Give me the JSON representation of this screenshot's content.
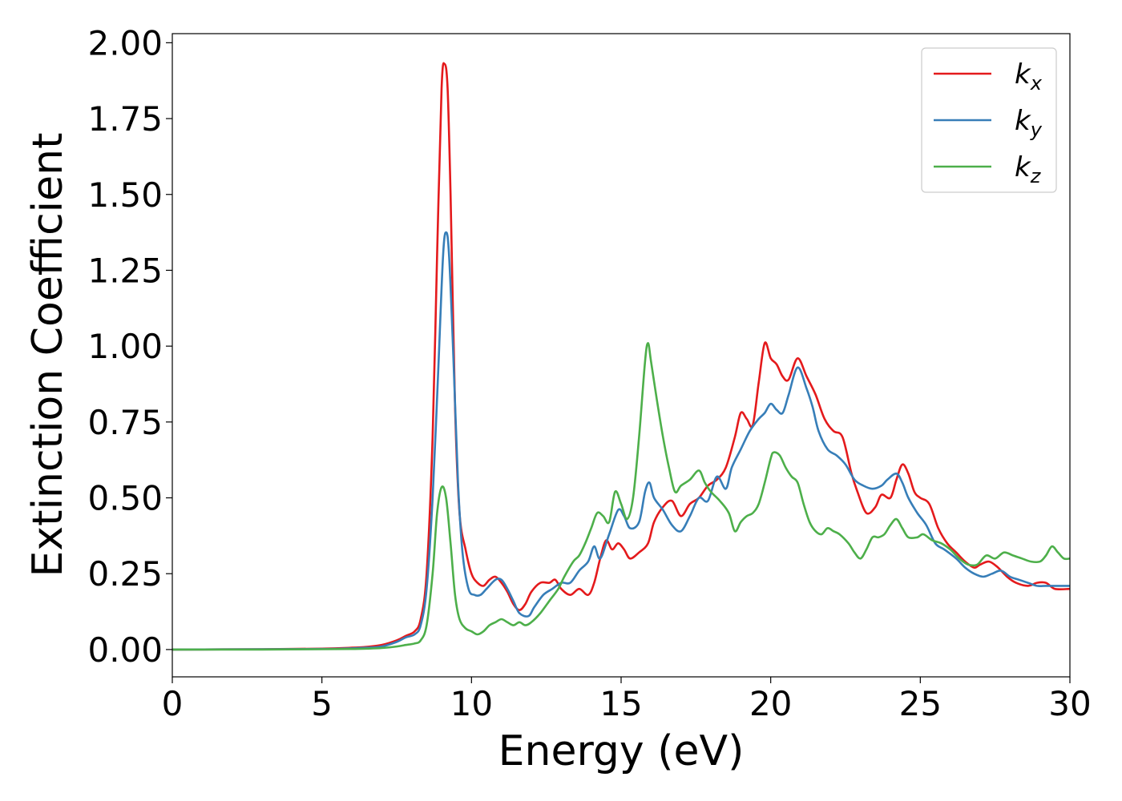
{
  "chart_data": {
    "type": "line",
    "title": "",
    "xlabel": "Energy (eV)",
    "ylabel": "Extinction Coefficient",
    "xlim": [
      0,
      30
    ],
    "ylim": [
      -0.09,
      2.03
    ],
    "xticks": [
      0,
      5,
      10,
      15,
      20,
      25,
      30
    ],
    "xtick_labels": [
      "0",
      "5",
      "10",
      "15",
      "20",
      "25",
      "30"
    ],
    "yticks": [
      0.0,
      0.25,
      0.5,
      0.75,
      1.0,
      1.25,
      1.5,
      1.75,
      2.0
    ],
    "ytick_labels": [
      "0.00",
      "0.25",
      "0.50",
      "0.75",
      "1.00",
      "1.25",
      "1.50",
      "1.75",
      "2.00"
    ],
    "grid": false,
    "legend_position": "top-right",
    "series": [
      {
        "name": "k",
        "subscript": "x",
        "color": "#e41a1c",
        "points": [
          [
            0,
            0.0
          ],
          [
            3,
            0.001
          ],
          [
            5,
            0.003
          ],
          [
            6,
            0.006
          ],
          [
            6.5,
            0.009
          ],
          [
            7,
            0.015
          ],
          [
            7.5,
            0.03
          ],
          [
            7.8,
            0.045
          ],
          [
            8.1,
            0.06
          ],
          [
            8.3,
            0.1
          ],
          [
            8.5,
            0.25
          ],
          [
            8.7,
            0.7
          ],
          [
            8.85,
            1.3
          ],
          [
            9.0,
            1.85
          ],
          [
            9.1,
            1.93
          ],
          [
            9.2,
            1.85
          ],
          [
            9.3,
            1.5
          ],
          [
            9.45,
            0.8
          ],
          [
            9.6,
            0.45
          ],
          [
            9.8,
            0.33
          ],
          [
            10.0,
            0.25
          ],
          [
            10.2,
            0.22
          ],
          [
            10.4,
            0.21
          ],
          [
            10.6,
            0.23
          ],
          [
            10.8,
            0.24
          ],
          [
            11.0,
            0.22
          ],
          [
            11.2,
            0.19
          ],
          [
            11.4,
            0.15
          ],
          [
            11.6,
            0.13
          ],
          [
            11.8,
            0.15
          ],
          [
            12.0,
            0.19
          ],
          [
            12.3,
            0.22
          ],
          [
            12.6,
            0.22
          ],
          [
            12.8,
            0.23
          ],
          [
            13.0,
            0.2
          ],
          [
            13.3,
            0.18
          ],
          [
            13.6,
            0.2
          ],
          [
            13.9,
            0.18
          ],
          [
            14.1,
            0.22
          ],
          [
            14.3,
            0.3
          ],
          [
            14.5,
            0.36
          ],
          [
            14.7,
            0.33
          ],
          [
            14.9,
            0.35
          ],
          [
            15.1,
            0.33
          ],
          [
            15.3,
            0.3
          ],
          [
            15.6,
            0.32
          ],
          [
            15.9,
            0.35
          ],
          [
            16.1,
            0.42
          ],
          [
            16.4,
            0.47
          ],
          [
            16.7,
            0.49
          ],
          [
            17.0,
            0.44
          ],
          [
            17.3,
            0.48
          ],
          [
            17.6,
            0.5
          ],
          [
            17.9,
            0.54
          ],
          [
            18.2,
            0.56
          ],
          [
            18.5,
            0.6
          ],
          [
            18.8,
            0.7
          ],
          [
            19.0,
            0.78
          ],
          [
            19.2,
            0.76
          ],
          [
            19.4,
            0.74
          ],
          [
            19.6,
            0.88
          ],
          [
            19.8,
            1.01
          ],
          [
            20.0,
            0.96
          ],
          [
            20.2,
            0.94
          ],
          [
            20.4,
            0.9
          ],
          [
            20.6,
            0.89
          ],
          [
            20.9,
            0.96
          ],
          [
            21.2,
            0.9
          ],
          [
            21.5,
            0.84
          ],
          [
            21.8,
            0.76
          ],
          [
            22.1,
            0.72
          ],
          [
            22.4,
            0.7
          ],
          [
            22.7,
            0.58
          ],
          [
            22.9,
            0.52
          ],
          [
            23.2,
            0.45
          ],
          [
            23.5,
            0.47
          ],
          [
            23.7,
            0.51
          ],
          [
            24.0,
            0.5
          ],
          [
            24.2,
            0.56
          ],
          [
            24.4,
            0.61
          ],
          [
            24.6,
            0.58
          ],
          [
            24.8,
            0.52
          ],
          [
            25.0,
            0.5
          ],
          [
            25.3,
            0.48
          ],
          [
            25.6,
            0.4
          ],
          [
            25.9,
            0.35
          ],
          [
            26.2,
            0.32
          ],
          [
            26.5,
            0.29
          ],
          [
            26.8,
            0.27
          ],
          [
            27.0,
            0.28
          ],
          [
            27.3,
            0.29
          ],
          [
            27.6,
            0.27
          ],
          [
            27.9,
            0.24
          ],
          [
            28.2,
            0.22
          ],
          [
            28.6,
            0.21
          ],
          [
            28.9,
            0.22
          ],
          [
            29.2,
            0.22
          ],
          [
            29.5,
            0.2
          ],
          [
            30.0,
            0.2
          ]
        ]
      },
      {
        "name": "k",
        "subscript": "y",
        "color": "#377eb8",
        "points": [
          [
            0,
            0.0
          ],
          [
            3,
            0.001
          ],
          [
            5,
            0.002
          ],
          [
            6,
            0.004
          ],
          [
            6.5,
            0.006
          ],
          [
            7,
            0.01
          ],
          [
            7.5,
            0.025
          ],
          [
            7.8,
            0.04
          ],
          [
            8.1,
            0.05
          ],
          [
            8.3,
            0.08
          ],
          [
            8.5,
            0.2
          ],
          [
            8.7,
            0.5
          ],
          [
            8.9,
            0.95
          ],
          [
            9.05,
            1.3
          ],
          [
            9.15,
            1.375
          ],
          [
            9.25,
            1.3
          ],
          [
            9.4,
            0.95
          ],
          [
            9.55,
            0.55
          ],
          [
            9.7,
            0.32
          ],
          [
            9.9,
            0.2
          ],
          [
            10.1,
            0.18
          ],
          [
            10.3,
            0.18
          ],
          [
            10.5,
            0.2
          ],
          [
            10.8,
            0.23
          ],
          [
            11.0,
            0.23
          ],
          [
            11.2,
            0.2
          ],
          [
            11.4,
            0.16
          ],
          [
            11.6,
            0.12
          ],
          [
            11.9,
            0.11
          ],
          [
            12.1,
            0.14
          ],
          [
            12.4,
            0.18
          ],
          [
            12.7,
            0.2
          ],
          [
            13.0,
            0.22
          ],
          [
            13.3,
            0.22
          ],
          [
            13.6,
            0.26
          ],
          [
            13.9,
            0.29
          ],
          [
            14.1,
            0.34
          ],
          [
            14.3,
            0.3
          ],
          [
            14.6,
            0.38
          ],
          [
            14.9,
            0.46
          ],
          [
            15.1,
            0.44
          ],
          [
            15.3,
            0.4
          ],
          [
            15.6,
            0.42
          ],
          [
            15.8,
            0.52
          ],
          [
            15.95,
            0.55
          ],
          [
            16.1,
            0.5
          ],
          [
            16.4,
            0.46
          ],
          [
            16.7,
            0.41
          ],
          [
            17.0,
            0.39
          ],
          [
            17.3,
            0.44
          ],
          [
            17.6,
            0.5
          ],
          [
            17.9,
            0.49
          ],
          [
            18.2,
            0.57
          ],
          [
            18.5,
            0.53
          ],
          [
            18.7,
            0.6
          ],
          [
            19.0,
            0.66
          ],
          [
            19.3,
            0.72
          ],
          [
            19.6,
            0.76
          ],
          [
            19.8,
            0.78
          ],
          [
            20.0,
            0.81
          ],
          [
            20.2,
            0.79
          ],
          [
            20.4,
            0.78
          ],
          [
            20.6,
            0.84
          ],
          [
            20.9,
            0.93
          ],
          [
            21.2,
            0.86
          ],
          [
            21.4,
            0.8
          ],
          [
            21.6,
            0.72
          ],
          [
            21.9,
            0.66
          ],
          [
            22.2,
            0.64
          ],
          [
            22.5,
            0.61
          ],
          [
            22.8,
            0.56
          ],
          [
            23.1,
            0.54
          ],
          [
            23.4,
            0.53
          ],
          [
            23.7,
            0.54
          ],
          [
            23.9,
            0.56
          ],
          [
            24.2,
            0.58
          ],
          [
            24.4,
            0.55
          ],
          [
            24.6,
            0.5
          ],
          [
            24.9,
            0.45
          ],
          [
            25.2,
            0.41
          ],
          [
            25.5,
            0.35
          ],
          [
            25.8,
            0.33
          ],
          [
            26.2,
            0.3
          ],
          [
            26.5,
            0.27
          ],
          [
            26.8,
            0.25
          ],
          [
            27.1,
            0.24
          ],
          [
            27.4,
            0.25
          ],
          [
            27.7,
            0.26
          ],
          [
            28.0,
            0.24
          ],
          [
            28.3,
            0.23
          ],
          [
            28.6,
            0.22
          ],
          [
            28.9,
            0.21
          ],
          [
            29.2,
            0.21
          ],
          [
            29.6,
            0.21
          ],
          [
            30.0,
            0.21
          ]
        ]
      },
      {
        "name": "k",
        "subscript": "z",
        "color": "#4daf4a",
        "points": [
          [
            0,
            0.0
          ],
          [
            3,
            0.0
          ],
          [
            5,
            0.001
          ],
          [
            6,
            0.002
          ],
          [
            6.5,
            0.003
          ],
          [
            7,
            0.005
          ],
          [
            7.5,
            0.01
          ],
          [
            7.8,
            0.015
          ],
          [
            8.1,
            0.02
          ],
          [
            8.3,
            0.03
          ],
          [
            8.5,
            0.08
          ],
          [
            8.7,
            0.25
          ],
          [
            8.85,
            0.45
          ],
          [
            9.0,
            0.535
          ],
          [
            9.15,
            0.5
          ],
          [
            9.3,
            0.35
          ],
          [
            9.45,
            0.18
          ],
          [
            9.6,
            0.1
          ],
          [
            9.8,
            0.07
          ],
          [
            10.0,
            0.06
          ],
          [
            10.2,
            0.05
          ],
          [
            10.4,
            0.06
          ],
          [
            10.6,
            0.08
          ],
          [
            10.8,
            0.09
          ],
          [
            11.0,
            0.1
          ],
          [
            11.2,
            0.09
          ],
          [
            11.4,
            0.08
          ],
          [
            11.6,
            0.09
          ],
          [
            11.8,
            0.08
          ],
          [
            12.0,
            0.09
          ],
          [
            12.3,
            0.12
          ],
          [
            12.6,
            0.16
          ],
          [
            12.9,
            0.2
          ],
          [
            13.1,
            0.24
          ],
          [
            13.4,
            0.29
          ],
          [
            13.6,
            0.31
          ],
          [
            13.8,
            0.35
          ],
          [
            14.0,
            0.4
          ],
          [
            14.2,
            0.45
          ],
          [
            14.4,
            0.44
          ],
          [
            14.6,
            0.42
          ],
          [
            14.8,
            0.52
          ],
          [
            15.0,
            0.48
          ],
          [
            15.2,
            0.43
          ],
          [
            15.4,
            0.5
          ],
          [
            15.6,
            0.7
          ],
          [
            15.8,
            0.95
          ],
          [
            15.9,
            1.01
          ],
          [
            16.0,
            0.95
          ],
          [
            16.2,
            0.82
          ],
          [
            16.4,
            0.7
          ],
          [
            16.6,
            0.6
          ],
          [
            16.8,
            0.52
          ],
          [
            17.0,
            0.54
          ],
          [
            17.3,
            0.56
          ],
          [
            17.6,
            0.59
          ],
          [
            17.8,
            0.55
          ],
          [
            18.0,
            0.52
          ],
          [
            18.3,
            0.49
          ],
          [
            18.6,
            0.45
          ],
          [
            18.8,
            0.39
          ],
          [
            19.0,
            0.42
          ],
          [
            19.2,
            0.44
          ],
          [
            19.4,
            0.45
          ],
          [
            19.6,
            0.48
          ],
          [
            19.8,
            0.55
          ],
          [
            20.0,
            0.63
          ],
          [
            20.1,
            0.65
          ],
          [
            20.3,
            0.64
          ],
          [
            20.5,
            0.6
          ],
          [
            20.7,
            0.57
          ],
          [
            20.9,
            0.55
          ],
          [
            21.1,
            0.48
          ],
          [
            21.3,
            0.42
          ],
          [
            21.5,
            0.39
          ],
          [
            21.7,
            0.38
          ],
          [
            21.9,
            0.4
          ],
          [
            22.1,
            0.39
          ],
          [
            22.3,
            0.38
          ],
          [
            22.6,
            0.35
          ],
          [
            22.8,
            0.32
          ],
          [
            23.0,
            0.3
          ],
          [
            23.2,
            0.33
          ],
          [
            23.4,
            0.37
          ],
          [
            23.6,
            0.37
          ],
          [
            23.8,
            0.38
          ],
          [
            24.0,
            0.41
          ],
          [
            24.2,
            0.43
          ],
          [
            24.4,
            0.4
          ],
          [
            24.6,
            0.37
          ],
          [
            24.9,
            0.37
          ],
          [
            25.1,
            0.38
          ],
          [
            25.4,
            0.36
          ],
          [
            25.7,
            0.35
          ],
          [
            26.0,
            0.33
          ],
          [
            26.3,
            0.3
          ],
          [
            26.6,
            0.28
          ],
          [
            26.9,
            0.28
          ],
          [
            27.2,
            0.31
          ],
          [
            27.5,
            0.3
          ],
          [
            27.8,
            0.32
          ],
          [
            28.1,
            0.31
          ],
          [
            28.4,
            0.3
          ],
          [
            28.7,
            0.29
          ],
          [
            29.0,
            0.29
          ],
          [
            29.2,
            0.31
          ],
          [
            29.4,
            0.34
          ],
          [
            29.6,
            0.32
          ],
          [
            29.8,
            0.3
          ],
          [
            30.0,
            0.3
          ]
        ]
      }
    ]
  }
}
